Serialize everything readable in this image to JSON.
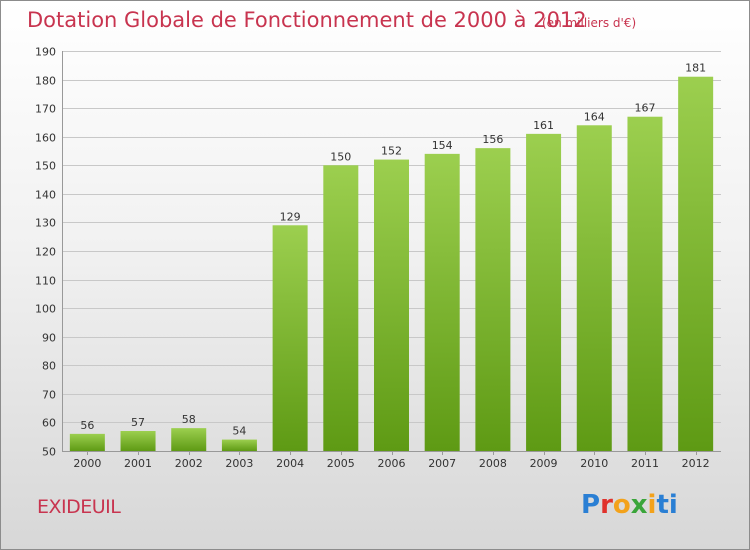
{
  "header": {
    "title": "Dotation Globale de Fonctionnement de 2000 à 2012",
    "unit": "(en milliers d'€)"
  },
  "footer": {
    "commune": "EXIDEUIL",
    "logo_letters": [
      "P",
      "r",
      "o",
      "x",
      "i",
      "t",
      "i"
    ]
  },
  "colors": {
    "title": "#c8344f",
    "bar_top": "#9ccf4f",
    "bar_bottom": "#5e9a14",
    "grid": "#c8c8c8",
    "axis_text": "#333333"
  },
  "chart_data": {
    "type": "bar",
    "title": "Dotation Globale de Fonctionnement de 2000 à 2012",
    "subtitle": "(en milliers d'€)",
    "xlabel": "",
    "ylabel": "",
    "categories": [
      "2000",
      "2001",
      "2002",
      "2003",
      "2004",
      "2005",
      "2006",
      "2007",
      "2008",
      "2009",
      "2010",
      "2011",
      "2012"
    ],
    "values": [
      56,
      57,
      58,
      54,
      129,
      150,
      152,
      154,
      156,
      161,
      164,
      167,
      181
    ],
    "ylim": [
      50,
      190
    ],
    "yticks": [
      50,
      60,
      70,
      80,
      90,
      100,
      110,
      120,
      130,
      140,
      150,
      160,
      170,
      180,
      190
    ],
    "grid": true,
    "legend": "none"
  }
}
